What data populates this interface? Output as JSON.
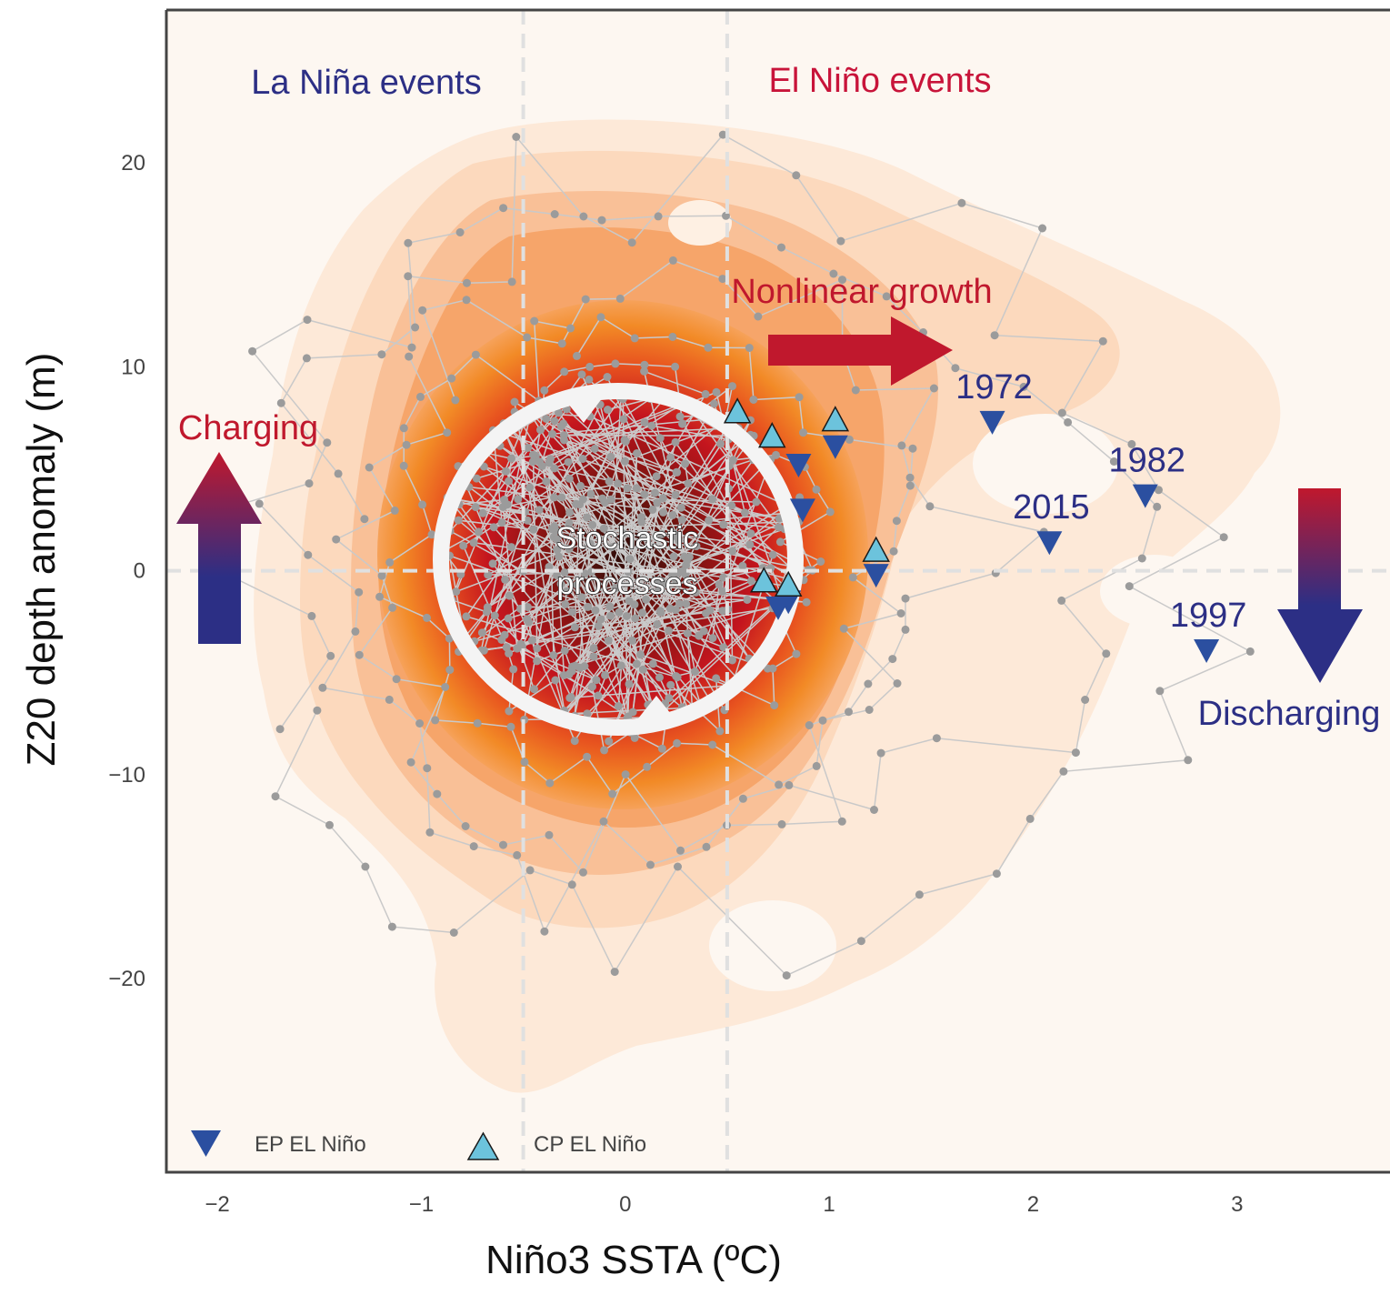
{
  "chart_data": {
    "type": "scatter",
    "title": "",
    "xlabel": "Niño3 SSTA (ºC)",
    "ylabel": "Z20 depth anomaly (m)",
    "xlim": [
      -2.25,
      3.75
    ],
    "ylim": [
      -29.5,
      27.5
    ],
    "x_ticks": [
      -2,
      -1,
      0,
      1,
      2,
      3
    ],
    "y_ticks": [
      -20,
      -10,
      0,
      10,
      20
    ],
    "x_tick_labels": [
      "−2",
      "−1",
      "0",
      "1",
      "2",
      "3"
    ],
    "y_tick_labels": [
      "−20",
      "−10",
      "0",
      "10",
      "20"
    ],
    "grid": false,
    "legend_position": "bottom-left",
    "threshold_lines": {
      "x": [
        -0.5,
        0.5
      ],
      "y": [
        0
      ]
    },
    "region_labels": {
      "la_nina": "La Niña events",
      "el_nino": "El Niño events"
    },
    "annotations": {
      "charging": "Charging",
      "discharging": "Discharging",
      "nonlinear_growth": "Nonlinear growth",
      "stochastic_line1": "Stochastic",
      "stochastic_line2": "processes"
    },
    "series": [
      {
        "name": "EP EL Niño",
        "marker": "triangle-down",
        "color": "#2b4fa0",
        "points": [
          {
            "x": 1.8,
            "y": 7.3,
            "label": "1972"
          },
          {
            "x": 2.55,
            "y": 3.7,
            "label": "1982"
          },
          {
            "x": 2.08,
            "y": 1.4,
            "label": "2015"
          },
          {
            "x": 2.85,
            "y": -3.9,
            "label": "1997"
          },
          {
            "x": 0.85,
            "y": 5.2,
            "label": ""
          },
          {
            "x": 1.03,
            "y": 6.1,
            "label": ""
          },
          {
            "x": 0.87,
            "y": 3.0,
            "label": ""
          },
          {
            "x": 1.23,
            "y": -0.2,
            "label": ""
          },
          {
            "x": 0.75,
            "y": -1.8,
            "label": ""
          },
          {
            "x": 0.8,
            "y": -1.5,
            "label": ""
          }
        ]
      },
      {
        "name": "CP EL Niño",
        "marker": "triangle-up",
        "color": "#6cc3dc",
        "points": [
          {
            "x": 0.55,
            "y": 7.8
          },
          {
            "x": 0.72,
            "y": 6.6
          },
          {
            "x": 1.03,
            "y": 7.4
          },
          {
            "x": 1.23,
            "y": 1.0
          },
          {
            "x": 0.68,
            "y": -0.5
          },
          {
            "x": 0.8,
            "y": -0.7
          }
        ]
      }
    ],
    "colors": {
      "background": "#fdf7f1",
      "density_low": "#fde6d2",
      "density_mid": "#f28a26",
      "density_high": "#c4151e",
      "density_peak": "#2e0c08",
      "trajectory_line": "#c9c9c9",
      "trajectory_dot": "#9b9b9b",
      "la_nina_text": "#2c2f85",
      "el_nino_text": "#c8143a",
      "charging_text": "#c0182d",
      "nonlinear_text": "#c0182d",
      "discharging_text": "#2c2f85",
      "year_text": "#2c2f85"
    }
  }
}
